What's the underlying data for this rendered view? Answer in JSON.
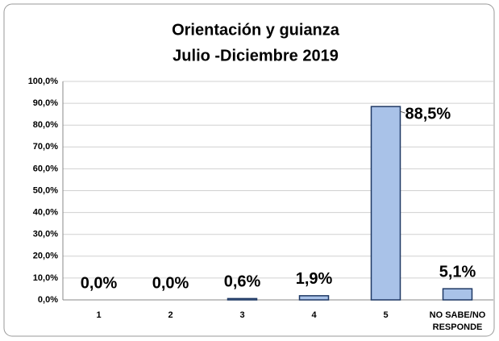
{
  "chart_data": {
    "type": "bar",
    "title": "Orientación y guianza",
    "subtitle": "Julio -Diciembre 2019",
    "categories": [
      "1",
      "2",
      "3",
      "4",
      "5",
      "NO SABE/NO RESPONDE"
    ],
    "values": [
      0,
      0,
      0.6,
      1.9,
      88.5,
      5.1
    ],
    "value_labels": [
      "0,0%",
      "0,0%",
      "0,6%",
      "1,9%",
      "88,5%",
      "5,1%"
    ],
    "color": "#a9c2e8",
    "ylim": [
      0,
      100
    ],
    "yticks": [
      {
        "value": 0,
        "label": "0,0%"
      },
      {
        "value": 10,
        "label": "10,0%"
      },
      {
        "value": 20,
        "label": "20,0%"
      },
      {
        "value": 30,
        "label": "30,0%"
      },
      {
        "value": 40,
        "label": "40,0%"
      },
      {
        "value": 50,
        "label": "50,0%"
      },
      {
        "value": 60,
        "label": "60,0%"
      },
      {
        "value": 70,
        "label": "70,0%"
      },
      {
        "value": 80,
        "label": "80,0%"
      },
      {
        "value": 90,
        "label": "90,0%"
      },
      {
        "value": 100,
        "label": "100,0%"
      }
    ],
    "grid": true
  }
}
